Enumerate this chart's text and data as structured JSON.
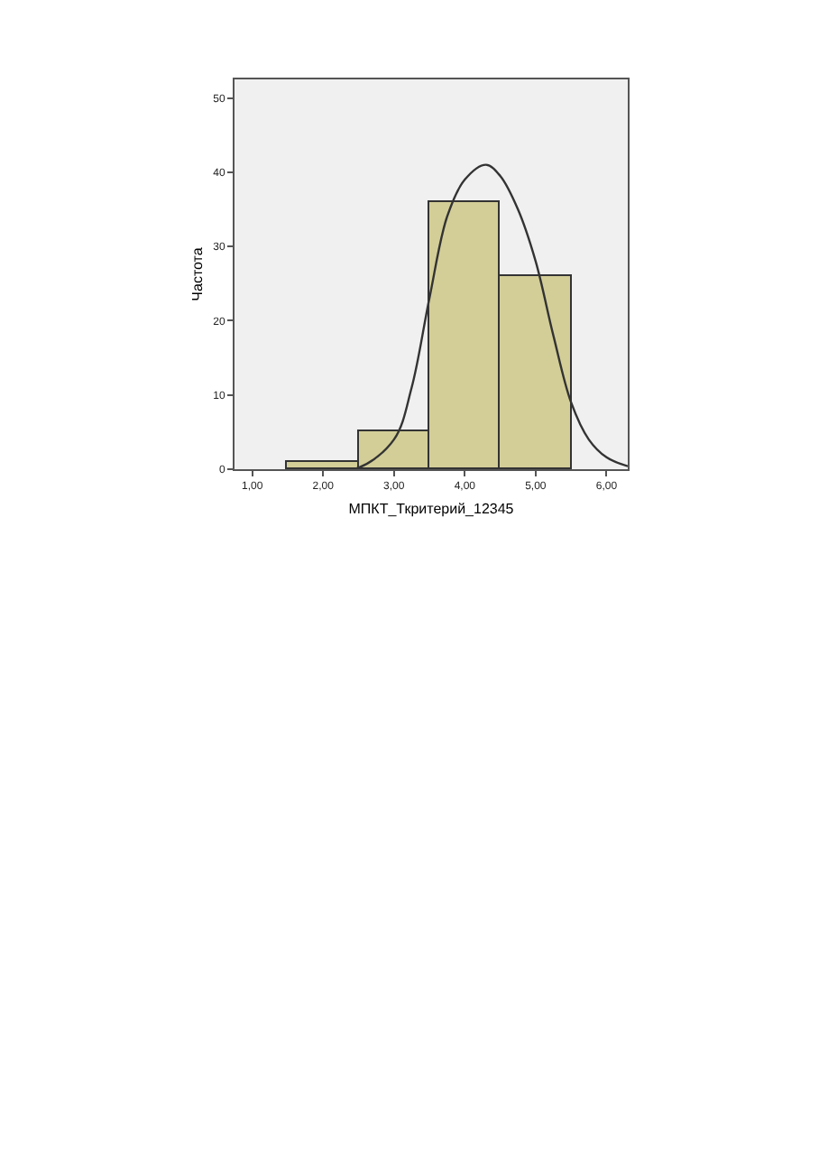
{
  "chart_data": {
    "type": "histogram",
    "xlabel": "МПКТ_Ткритерий_12345",
    "ylabel": "Частота",
    "bins": [
      1.5,
      2.5,
      3.5,
      4.5,
      5.5
    ],
    "values": [
      1,
      5,
      36,
      26
    ],
    "color": "#d3ce97",
    "series": [
      {
        "type": "line",
        "color": "#333333",
        "x": [
          2.0,
          2.5,
          3.0,
          3.25,
          3.5,
          3.75,
          4.0,
          4.3,
          4.5,
          4.75,
          5.0,
          5.25,
          5.5,
          5.75,
          6.0,
          6.3
        ],
        "values": [
          0,
          0.2,
          4,
          11,
          23,
          34,
          39,
          41,
          39.5,
          35,
          28,
          18,
          9,
          4,
          1.6,
          0.4
        ]
      }
    ],
    "xlim": [
      0.75,
      6.3
    ],
    "ylim": [
      0,
      52.5
    ],
    "xticks": [
      {
        "value": 1,
        "label": "1,00"
      },
      {
        "value": 2,
        "label": "2,00"
      },
      {
        "value": 3,
        "label": "3,00"
      },
      {
        "value": 4,
        "label": "4,00"
      },
      {
        "value": 5,
        "label": "5,00"
      },
      {
        "value": 6,
        "label": "6,00"
      }
    ],
    "yticks": [
      0,
      10,
      20,
      30,
      40,
      50
    ],
    "grid": false
  }
}
